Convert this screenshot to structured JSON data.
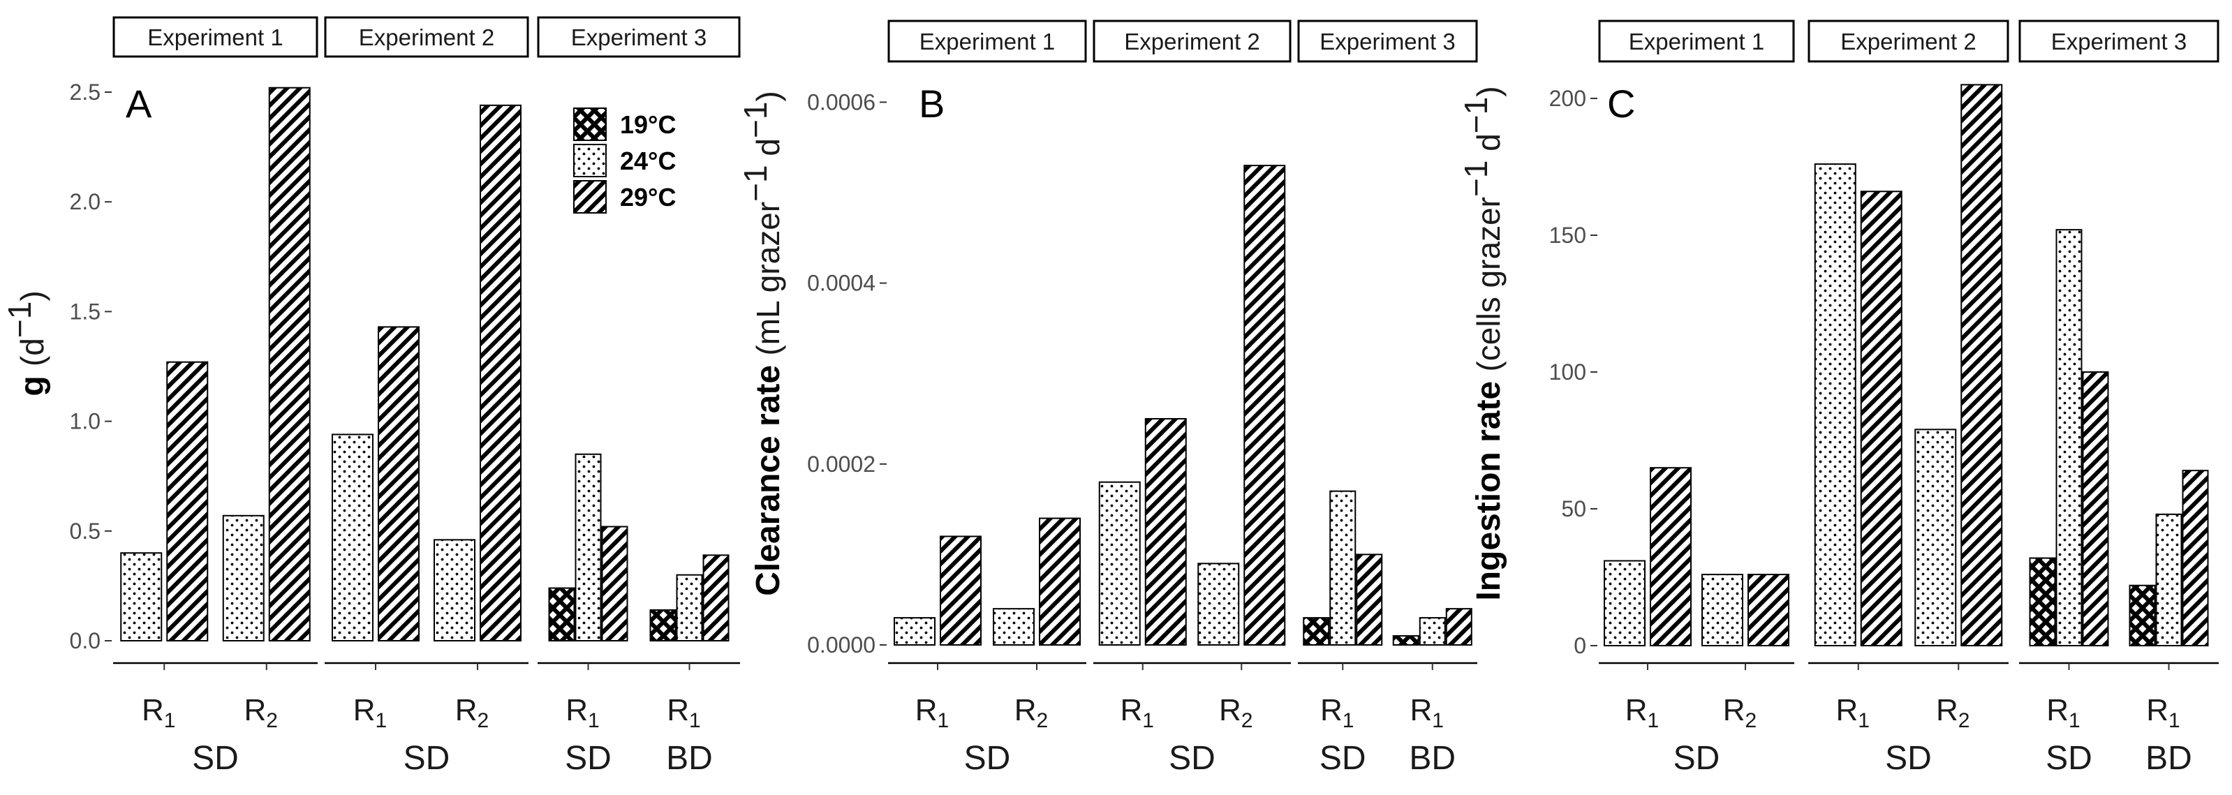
{
  "chart_data": [
    {
      "type": "bar",
      "panel_label": "A",
      "ylabel_bold": "g",
      "ylabel_rest": "(d",
      "ylabel_sup": "−1",
      "ylabel_close": ")",
      "ylim": [
        0,
        2.5
      ],
      "yticks": [
        0,
        0.5,
        1,
        1.5,
        2,
        2.5
      ],
      "ytick_labels": [
        "0.0",
        "0.5",
        "1.0",
        "1.5",
        "2.0",
        "2.5"
      ],
      "facets": [
        {
          "strip": "Experiment 1",
          "groups": [
            {
              "cat": "R",
              "sub": "1",
              "bars": [
                {
                  "temp": "24°C",
                  "value": 0.4
                },
                {
                  "temp": "29°C",
                  "value": 1.27
                }
              ]
            },
            {
              "cat": "R",
              "sub": "2",
              "bars": [
                {
                  "temp": "24°C",
                  "value": 0.57
                },
                {
                  "temp": "29°C",
                  "value": 2.52
                }
              ]
            }
          ],
          "labels": [
            {
              "text": "SD",
              "under": [
                0,
                1
              ]
            }
          ]
        },
        {
          "strip": "Experiment 2",
          "groups": [
            {
              "cat": "R",
              "sub": "1",
              "bars": [
                {
                  "temp": "24°C",
                  "value": 0.94
                },
                {
                  "temp": "29°C",
                  "value": 1.43
                }
              ]
            },
            {
              "cat": "R",
              "sub": "2",
              "bars": [
                {
                  "temp": "24°C",
                  "value": 0.46
                },
                {
                  "temp": "29°C",
                  "value": 2.44
                }
              ]
            }
          ],
          "labels": [
            {
              "text": "SD",
              "under": [
                0,
                1
              ]
            }
          ]
        },
        {
          "strip": "Experiment 3",
          "groups": [
            {
              "cat": "R",
              "sub": "1",
              "bars": [
                {
                  "temp": "19°C",
                  "value": 0.24
                },
                {
                  "temp": "24°C",
                  "value": 0.85
                },
                {
                  "temp": "29°C",
                  "value": 0.52
                }
              ]
            },
            {
              "cat": "R",
              "sub": "1",
              "bars": [
                {
                  "temp": "19°C",
                  "value": 0.14
                },
                {
                  "temp": "24°C",
                  "value": 0.3
                },
                {
                  "temp": "29°C",
                  "value": 0.39
                }
              ]
            }
          ],
          "labels": [
            {
              "text": "SD",
              "under": [
                0
              ]
            },
            {
              "text": "BD",
              "under": [
                1
              ]
            }
          ]
        }
      ]
    },
    {
      "type": "bar",
      "panel_label": "B",
      "ylabel_bold": "Clearance rate",
      "ylabel_rest": "(mL grazer",
      "ylabel_sup": "−1",
      "ylabel_mid": " d",
      "ylabel_sup2": "−1",
      "ylabel_close": ")",
      "ylim": [
        0,
        0.00063
      ],
      "yticks": [
        0,
        0.0002,
        0.0004,
        0.0006
      ],
      "ytick_labels": [
        "0.0000",
        "0.0002",
        "0.0004",
        "0.0006"
      ],
      "facets": [
        {
          "strip": "Experiment 1",
          "groups": [
            {
              "cat": "R",
              "sub": "1",
              "bars": [
                {
                  "temp": "24°C",
                  "value": 3e-05
                },
                {
                  "temp": "29°C",
                  "value": 0.00012
                }
              ]
            },
            {
              "cat": "R",
              "sub": "2",
              "bars": [
                {
                  "temp": "24°C",
                  "value": 4e-05
                },
                {
                  "temp": "29°C",
                  "value": 0.00014
                }
              ]
            }
          ],
          "labels": [
            {
              "text": "SD",
              "under": [
                0,
                1
              ]
            }
          ]
        },
        {
          "strip": "Experiment 2",
          "groups": [
            {
              "cat": "R",
              "sub": "1",
              "bars": [
                {
                  "temp": "24°C",
                  "value": 0.00018
                },
                {
                  "temp": "29°C",
                  "value": 0.00025
                }
              ]
            },
            {
              "cat": "R",
              "sub": "2",
              "bars": [
                {
                  "temp": "24°C",
                  "value": 9e-05
                },
                {
                  "temp": "29°C",
                  "value": 0.00053
                }
              ]
            }
          ],
          "labels": [
            {
              "text": "SD",
              "under": [
                0,
                1
              ]
            }
          ]
        },
        {
          "strip": "Experiment 3",
          "groups": [
            {
              "cat": "R",
              "sub": "1",
              "bars": [
                {
                  "temp": "19°C",
                  "value": 3e-05
                },
                {
                  "temp": "24°C",
                  "value": 0.00017
                },
                {
                  "temp": "29°C",
                  "value": 0.0001
                }
              ]
            },
            {
              "cat": "R",
              "sub": "1",
              "bars": [
                {
                  "temp": "19°C",
                  "value": 1e-05
                },
                {
                  "temp": "24°C",
                  "value": 3e-05
                },
                {
                  "temp": "29°C",
                  "value": 4e-05
                }
              ]
            }
          ],
          "labels": [
            {
              "text": "SD",
              "under": [
                0
              ]
            },
            {
              "text": "BD",
              "under": [
                1
              ]
            }
          ]
        }
      ]
    },
    {
      "type": "bar",
      "panel_label": "C",
      "ylabel_bold": "Ingestion rate",
      "ylabel_rest": "(cells grazer",
      "ylabel_sup": "−1",
      "ylabel_mid": " d",
      "ylabel_sup2": "−1",
      "ylabel_close": ")",
      "ylim": [
        0,
        210
      ],
      "yticks": [
        0,
        50,
        100,
        150,
        200
      ],
      "ytick_labels": [
        "0",
        "50",
        "100",
        "150",
        "200"
      ],
      "facets": [
        {
          "strip": "Experiment 1",
          "groups": [
            {
              "cat": "R",
              "sub": "1",
              "bars": [
                {
                  "temp": "24°C",
                  "value": 31
                },
                {
                  "temp": "29°C",
                  "value": 65
                }
              ]
            },
            {
              "cat": "R",
              "sub": "2",
              "bars": [
                {
                  "temp": "24°C",
                  "value": 26
                },
                {
                  "temp": "29°C",
                  "value": 26
                }
              ]
            }
          ],
          "labels": [
            {
              "text": "SD",
              "under": [
                0,
                1
              ]
            }
          ]
        },
        {
          "strip": "Experiment 2",
          "groups": [
            {
              "cat": "R",
              "sub": "1",
              "bars": [
                {
                  "temp": "24°C",
                  "value": 176
                },
                {
                  "temp": "29°C",
                  "value": 166
                }
              ]
            },
            {
              "cat": "R",
              "sub": "2",
              "bars": [
                {
                  "temp": "24°C",
                  "value": 79
                },
                {
                  "temp": "29°C",
                  "value": 205
                }
              ]
            }
          ],
          "labels": [
            {
              "text": "SD",
              "under": [
                0,
                1
              ]
            }
          ]
        },
        {
          "strip": "Experiment 3",
          "groups": [
            {
              "cat": "R",
              "sub": "1",
              "bars": [
                {
                  "temp": "19°C",
                  "value": 32
                },
                {
                  "temp": "24°C",
                  "value": 152
                },
                {
                  "temp": "29°C",
                  "value": 100
                }
              ]
            },
            {
              "cat": "R",
              "sub": "1",
              "bars": [
                {
                  "temp": "19°C",
                  "value": 22
                },
                {
                  "temp": "24°C",
                  "value": 48
                },
                {
                  "temp": "29°C",
                  "value": 64
                }
              ]
            }
          ],
          "labels": [
            {
              "text": "SD",
              "under": [
                0
              ]
            },
            {
              "text": "BD",
              "under": [
                1
              ]
            }
          ]
        }
      ]
    }
  ],
  "legend": {
    "placement": "top-right of panel A",
    "entries": [
      {
        "label": "19°C",
        "pattern": "crosshatch"
      },
      {
        "label": "24°C",
        "pattern": "dots"
      },
      {
        "label": "29°C",
        "pattern": "stripes"
      }
    ]
  },
  "colors": {
    "bar_fill": "#ffffff",
    "bar_pattern": "#000000",
    "bar_outline": "#000000",
    "strip_border": "#000000",
    "axis_line": "#000000",
    "tick_text": "#4d4d4d"
  }
}
